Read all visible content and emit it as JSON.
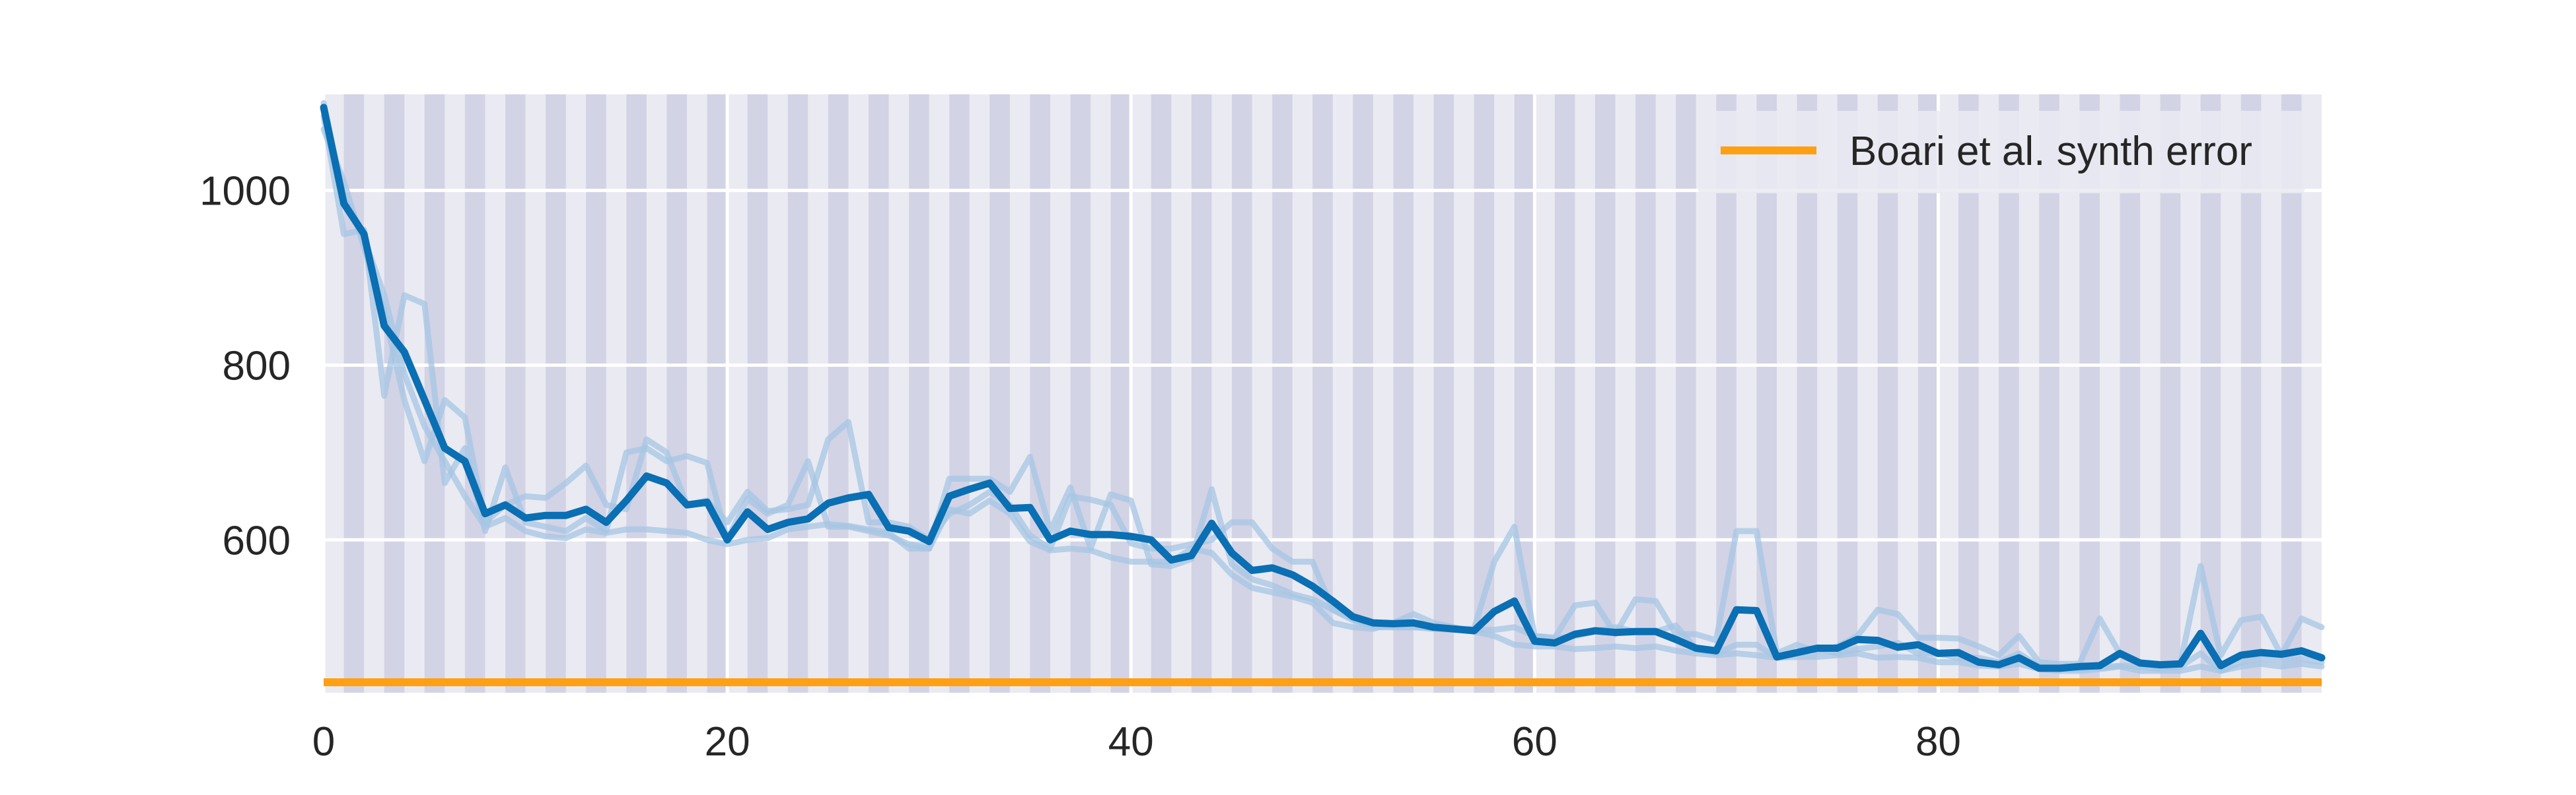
{
  "chart_data": {
    "type": "line",
    "title": "",
    "xlabel": "",
    "ylabel": "",
    "xlim": [
      0,
      99
    ],
    "ylim": [
      425,
      1110
    ],
    "x_ticks": [
      0,
      20,
      40,
      60,
      80
    ],
    "y_ticks": [
      600,
      800,
      1000
    ],
    "x_tick_labels": [
      "0",
      "20",
      "40",
      "60",
      "80"
    ],
    "y_tick_labels": [
      "600",
      "800",
      "1000"
    ],
    "grid": true,
    "stripes": {
      "every": 2,
      "colors": [
        "#eaeaf2",
        "#d3d3e6"
      ]
    },
    "legend": {
      "position": "top-right",
      "entries": [
        "Boari et al. synth error"
      ]
    },
    "colors": {
      "mean": "#0a6fb3",
      "runs": "#a5c6e3",
      "reference": "#ff9f12",
      "grid": "#ffffff",
      "background": "#eaeaf2",
      "stripe": "#d3d3e6"
    },
    "x": [
      0,
      1,
      2,
      3,
      4,
      5,
      6,
      7,
      8,
      9,
      10,
      11,
      12,
      13,
      14,
      15,
      16,
      17,
      18,
      19,
      20,
      21,
      22,
      23,
      24,
      25,
      26,
      27,
      28,
      29,
      30,
      31,
      32,
      33,
      34,
      35,
      36,
      37,
      38,
      39,
      40,
      41,
      42,
      43,
      44,
      45,
      46,
      47,
      48,
      49,
      50,
      51,
      52,
      53,
      54,
      55,
      56,
      57,
      58,
      59,
      60,
      61,
      62,
      63,
      64,
      65,
      66,
      67,
      68,
      69,
      70,
      71,
      72,
      73,
      74,
      75,
      76,
      77,
      78,
      79,
      80,
      81,
      82,
      83,
      84,
      85,
      86,
      87,
      88,
      89,
      90,
      91,
      92,
      93,
      94,
      95,
      96,
      97,
      98,
      99
    ],
    "series": [
      {
        "role": "mean",
        "values": [
          1095,
          985,
          950,
          845,
          815,
          760,
          705,
          690,
          630,
          640,
          625,
          628,
          628,
          635,
          620,
          645,
          673,
          665,
          640,
          643,
          600,
          632,
          612,
          620,
          624,
          642,
          648,
          652,
          614,
          610,
          598,
          650,
          658,
          665,
          636,
          637,
          600,
          610,
          606,
          606,
          604,
          600,
          577,
          582,
          619,
          585,
          565,
          568,
          560,
          547,
          530,
          512,
          505,
          504,
          505,
          500,
          498,
          496,
          518,
          530,
          484,
          482,
          492,
          496,
          494,
          495,
          495,
          486,
          476,
          473,
          520,
          519,
          466,
          471,
          476,
          476,
          486,
          485,
          477,
          480,
          470,
          471,
          460,
          457,
          465,
          453,
          453,
          455,
          456,
          470,
          459,
          457,
          458,
          493,
          456,
          468,
          471,
          469,
          473,
          465
        ]
      },
      {
        "role": "run",
        "values": [
          1085,
          950,
          955,
          765,
          880,
          870,
          665,
          705,
          610,
          683,
          620,
          615,
          610,
          625,
          610,
          700,
          705,
          690,
          696,
          688,
          600,
          647,
          630,
          640,
          690,
          615,
          615,
          610,
          605,
          595,
          590,
          670,
          670,
          670,
          655,
          695,
          610,
          660,
          590,
          652,
          645,
          572,
          570,
          578,
          658,
          572,
          555,
          548,
          538,
          532,
          520,
          508,
          502,
          500,
          500,
          499,
          498,
          498,
          575,
          615,
          490,
          488,
          525,
          528,
          492,
          532,
          530,
          492,
          492,
          485,
          610,
          610,
          470,
          480,
          472,
          478,
          490,
          520,
          515,
          488,
          488,
          487,
          478,
          468,
          490,
          460,
          458,
          458,
          510,
          470,
          460,
          455,
          458,
          570,
          468,
          508,
          512,
          468,
          510,
          500
        ]
      },
      {
        "role": "run",
        "values": [
          1070,
          1010,
          935,
          860,
          760,
          690,
          760,
          740,
          620,
          640,
          650,
          648,
          665,
          685,
          640,
          635,
          715,
          700,
          640,
          645,
          620,
          655,
          633,
          635,
          640,
          715,
          735,
          620,
          620,
          615,
          600,
          630,
          640,
          655,
          640,
          605,
          590,
          650,
          646,
          640,
          596,
          590,
          590,
          595,
          600,
          620,
          620,
          590,
          575,
          575,
          520,
          510,
          500,
          500,
          500,
          498,
          497,
          497,
          497,
          500,
          490,
          487,
          490,
          495,
          500,
          495,
          495,
          502,
          475,
          470,
          480,
          480,
          465,
          470,
          475,
          470,
          475,
          478,
          482,
          470,
          470,
          465,
          465,
          460,
          470,
          455,
          452,
          452,
          454,
          456,
          455,
          452,
          455,
          470,
          450,
          460,
          464,
          462,
          464,
          460
        ]
      },
      {
        "role": "run",
        "values": [
          1100,
          990,
          945,
          880,
          790,
          730,
          690,
          650,
          615,
          625,
          610,
          604,
          602,
          612,
          608,
          612,
          612,
          610,
          608,
          600,
          595,
          600,
          602,
          612,
          615,
          618,
          616,
          612,
          608,
          590,
          590,
          635,
          630,
          645,
          630,
          598,
          588,
          590,
          588,
          580,
          575,
          575,
          575,
          590,
          585,
          560,
          545,
          540,
          535,
          528,
          505,
          500,
          498,
          505,
          515,
          505,
          500,
          495,
          490,
          480,
          478,
          478,
          475,
          476,
          478,
          476,
          478,
          473,
          470,
          468,
          470,
          468,
          465,
          466,
          466,
          468,
          470,
          465,
          466,
          465,
          460,
          460,
          456,
          455,
          458,
          452,
          450,
          450,
          452,
          455,
          450,
          450,
          450,
          455,
          450,
          455,
          458,
          455,
          458,
          455
        ]
      }
    ],
    "reference_lines": [
      {
        "name": "Boari et al. synth error",
        "y": 437
      }
    ]
  }
}
